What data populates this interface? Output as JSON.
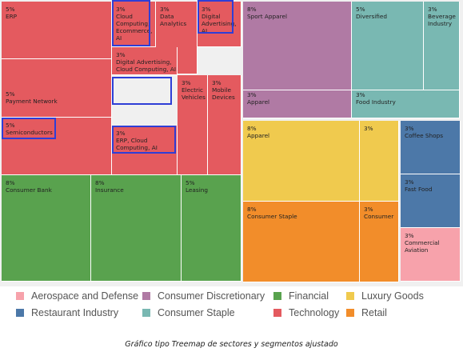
{
  "caption": "Gráfico tipo Treemap de sectores y segmentos ajustado",
  "chart_data": {
    "type": "treemap",
    "colors": {
      "Aerospace and Defense": "#f7a2ab",
      "Consumer Discretionary": "#b07aa4",
      "Financial": "#59a24e",
      "Luxury Goods": "#f0ca4e",
      "Restaurant Industry": "#4c78a8",
      "Consumer Staple": "#79b8b2",
      "Technology": "#e45a5f",
      "Retail": "#f28d2a"
    },
    "legend": [
      "Aerospace and Defense",
      "Consumer Discretionary",
      "Financial",
      "Luxury Goods",
      "Restaurant Industry",
      "Consumer Staple",
      "Technology",
      "Retail"
    ],
    "tiles": [
      {
        "sector": "Technology",
        "value": "5%",
        "label": "ERP"
      },
      {
        "sector": "Technology",
        "value": "3%",
        "label": "Cloud Computing, Ecommerce, AI",
        "highlighted": true
      },
      {
        "sector": "Technology",
        "value": "3%",
        "label": "Data Analytics"
      },
      {
        "sector": "Technology",
        "value": "3%",
        "label": "Digital Advertising, AI",
        "highlighted": true
      },
      {
        "sector": "Technology",
        "value": "5%",
        "label": "Payment Network"
      },
      {
        "sector": "Technology",
        "value": "3%",
        "label": "Digital Advertising, Cloud Computing, AI",
        "highlighted": true
      },
      {
        "sector": "Technology",
        "value": "3%",
        "label": "Electric Vehicles"
      },
      {
        "sector": "Technology",
        "value": "3%",
        "label": "Mobile Devices"
      },
      {
        "sector": "Technology",
        "value": "5%",
        "label": "Semiconductors",
        "highlighted": true
      },
      {
        "sector": "Technology",
        "value": "3%",
        "label": "ERP, Cloud Computing, AI",
        "highlighted": true
      },
      {
        "sector": "Financial",
        "value": "8%",
        "label": "Consumer Bank"
      },
      {
        "sector": "Financial",
        "value": "8%",
        "label": "Insurance"
      },
      {
        "sector": "Financial",
        "value": "5%",
        "label": "Leasing"
      },
      {
        "sector": "Consumer Discretionary",
        "value": "8%",
        "label": "Sport Apparel"
      },
      {
        "sector": "Consumer Discretionary",
        "value": "3%",
        "label": "Apparel"
      },
      {
        "sector": "Consumer Staple",
        "value": "5%",
        "label": "Diversified"
      },
      {
        "sector": "Consumer Staple",
        "value": "3%",
        "label": "Beverage Industry"
      },
      {
        "sector": "Consumer Staple",
        "value": "3%",
        "label": "Food Industry"
      },
      {
        "sector": "Luxury Goods",
        "value": "8%",
        "label": "Apparel"
      },
      {
        "sector": "Luxury Goods",
        "value": "3%",
        "label": ""
      },
      {
        "sector": "Retail",
        "value": "8%",
        "label": "Consumer Staple"
      },
      {
        "sector": "Retail",
        "value": "3%",
        "label": "Consumer"
      },
      {
        "sector": "Restaurant Industry",
        "value": "3%",
        "label": "Coffee Shops"
      },
      {
        "sector": "Restaurant Industry",
        "value": "3%",
        "label": "Fast Food"
      },
      {
        "sector": "Aerospace and Defense",
        "value": "3%",
        "label": "Commercial Aviation"
      }
    ]
  }
}
